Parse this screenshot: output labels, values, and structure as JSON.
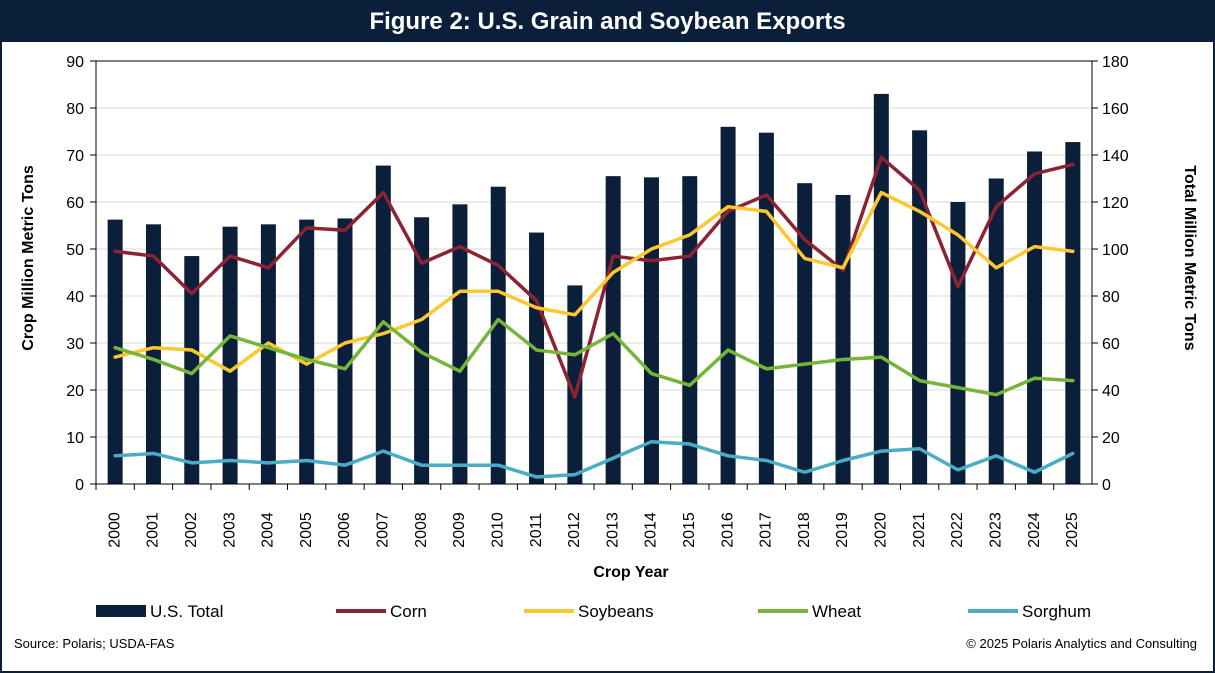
{
  "title": "Figure 2: U.S. Grain and Soybean Exports",
  "source": "Source: Polaris; USDA-FAS",
  "copyright": "© 2025 Polaris Analytics and Consulting",
  "colors": {
    "total": "#0b1f3a",
    "corn": "#8b2332",
    "soybeans": "#fcc830",
    "wheat": "#76b53a",
    "sorghum": "#4bacc6"
  },
  "chart_data": {
    "type": "bar",
    "xlabel": "Crop Year",
    "ylabel_left": "Crop Million Metric Tons",
    "ylabel_right": "Total Million Metric Tons",
    "ylim_left": [
      0,
      90
    ],
    "ylim_right": [
      0,
      180
    ],
    "yticks_left": [
      0,
      10,
      20,
      30,
      40,
      50,
      60,
      70,
      80,
      90
    ],
    "yticks_right": [
      0,
      20,
      40,
      60,
      80,
      100,
      120,
      140,
      160,
      180
    ],
    "categories": [
      "2000",
      "2001",
      "2002",
      "2003",
      "2004",
      "2005",
      "2006",
      "2007",
      "2008",
      "2009",
      "2010",
      "2011",
      "2012",
      "2013",
      "2014",
      "2015",
      "2016",
      "2017",
      "2018",
      "2019",
      "2020",
      "2021",
      "2022",
      "2023",
      "2024",
      "2025"
    ],
    "legend_position": "bottom",
    "grid": true,
    "series": [
      {
        "name": "U.S. Total",
        "type": "bar",
        "axis": "right",
        "values": [
          112.5,
          110.5,
          97,
          109.5,
          110.5,
          112.5,
          113,
          135.5,
          113.5,
          119,
          126.5,
          107,
          84.5,
          131,
          130.5,
          131,
          152,
          149.5,
          128,
          123,
          166,
          150.5,
          120,
          130,
          141.5,
          145.5
        ]
      },
      {
        "name": "Corn",
        "type": "line",
        "axis": "left",
        "values": [
          49.5,
          48.5,
          40.5,
          48.5,
          46,
          54.5,
          54,
          62,
          47,
          50.5,
          46.5,
          39,
          18.5,
          48.5,
          47.5,
          48.5,
          58,
          61.5,
          52,
          45.5,
          69.5,
          62.5,
          42,
          59,
          66,
          68
        ]
      },
      {
        "name": "Soybeans",
        "type": "line",
        "axis": "left",
        "values": [
          27,
          29,
          28.5,
          24,
          30,
          25.5,
          30,
          32,
          35,
          41,
          41,
          37.5,
          36,
          45,
          50,
          53,
          59,
          58,
          48,
          46,
          62,
          58,
          53,
          46,
          50.5,
          49.5
        ]
      },
      {
        "name": "Wheat",
        "type": "line",
        "axis": "left",
        "values": [
          29,
          26.5,
          23.5,
          31.5,
          29,
          26.5,
          24.5,
          34.5,
          28,
          24,
          35,
          28.5,
          27.5,
          32,
          23.5,
          21,
          28.5,
          24.5,
          25.5,
          26.5,
          27,
          22,
          20.5,
          19,
          22.5,
          22
        ]
      },
      {
        "name": "Sorghum",
        "type": "line",
        "axis": "left",
        "values": [
          6,
          6.5,
          4.5,
          5,
          4.5,
          5,
          4,
          7,
          4,
          4,
          4,
          1.5,
          2,
          5.5,
          9,
          8.5,
          6,
          5,
          2.5,
          5,
          7,
          7.5,
          3,
          6,
          2.5,
          6.5
        ]
      }
    ]
  }
}
